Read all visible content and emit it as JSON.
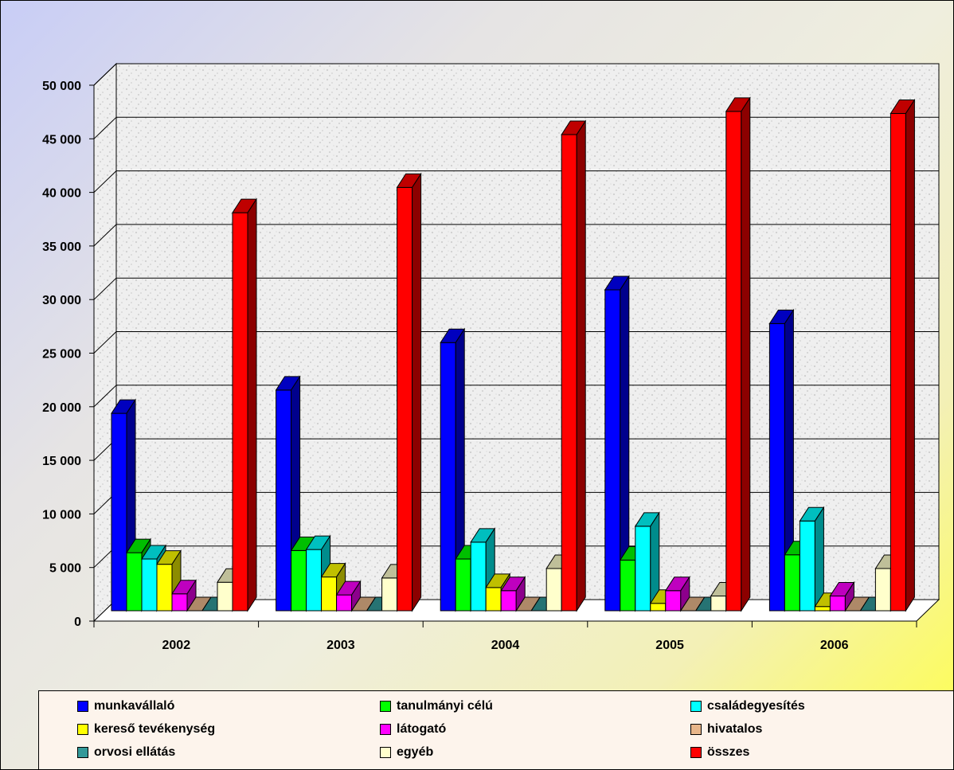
{
  "chart_data": {
    "type": "bar",
    "title": "",
    "xlabel": "",
    "ylabel": "",
    "ylim": [
      0,
      50000
    ],
    "grid": true,
    "legend_position": "bottom",
    "categories": [
      "2002",
      "2003",
      "2004",
      "2005",
      "2006"
    ],
    "y_ticks": [
      "0",
      "5 000",
      "10 000",
      "15 000",
      "20 000",
      "25 000",
      "30 000",
      "35 000",
      "40 000",
      "45 000",
      "50 000"
    ],
    "series": [
      {
        "name": "munkavállaló",
        "color": "#0000ff",
        "values": [
          18700,
          20900,
          25400,
          30400,
          27200
        ]
      },
      {
        "name": "tanulmányi célú",
        "color": "#00ff00",
        "values": [
          5500,
          5700,
          4900,
          4800,
          5300
        ]
      },
      {
        "name": "családegyesítés",
        "color": "#00ffff",
        "values": [
          4900,
          5800,
          6500,
          8000,
          8500
        ]
      },
      {
        "name": "kereső tevékenység",
        "color": "#ffff00",
        "values": [
          4400,
          3200,
          2200,
          700,
          400
        ]
      },
      {
        "name": "látogató",
        "color": "#ff00ff",
        "values": [
          1600,
          1500,
          1900,
          1900,
          1400
        ]
      },
      {
        "name": "hivatalos",
        "color": "#e8b68a",
        "values": [
          0,
          0,
          0,
          0,
          0
        ]
      },
      {
        "name": "orvosi ellátás",
        "color": "#339999",
        "values": [
          0,
          0,
          0,
          0,
          0
        ]
      },
      {
        "name": "egyéb",
        "color": "#ffffcc",
        "values": [
          2700,
          3100,
          4000,
          1400,
          4000
        ]
      },
      {
        "name": "összes",
        "color": "#ff0000",
        "values": [
          37700,
          40100,
          45100,
          47300,
          47100
        ]
      }
    ]
  }
}
